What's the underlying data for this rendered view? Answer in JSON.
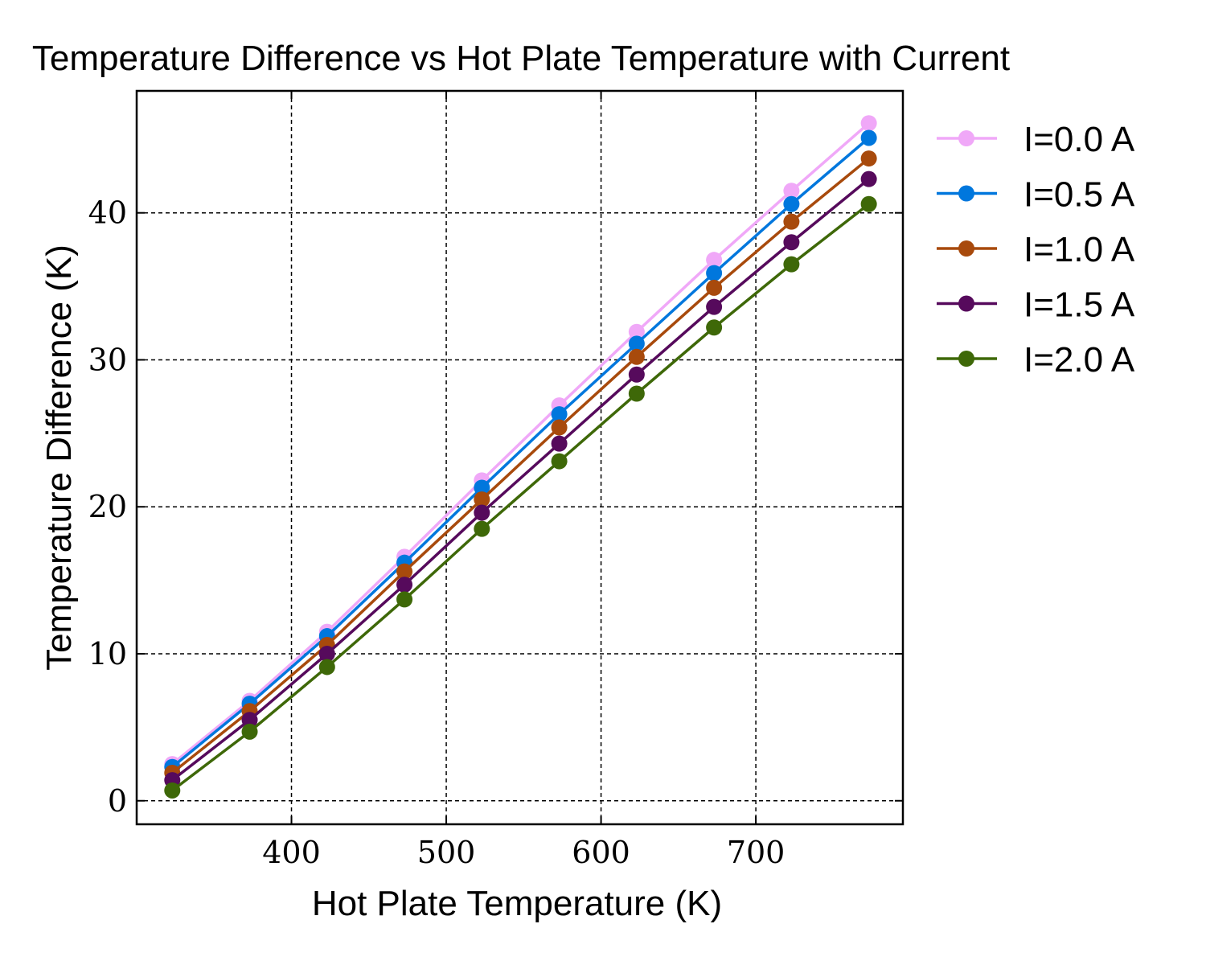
{
  "chart_data": {
    "type": "line",
    "title": "Temperature Difference vs Hot Plate Temperature with Current",
    "xlabel": "Hot Plate Temperature (K)",
    "ylabel": "Temperature Difference (K)",
    "xlim": [
      300,
      795
    ],
    "ylim": [
      -1.6,
      48.3
    ],
    "xticks": [
      400,
      500,
      600,
      700
    ],
    "yticks": [
      0,
      10,
      20,
      30,
      40
    ],
    "grid": true,
    "grid_style": "dashed",
    "legend_position": "outside-right-top",
    "x": [
      323,
      373,
      423,
      473,
      523,
      573,
      623,
      673,
      723,
      773
    ],
    "series": [
      {
        "name": "I=0.0 A",
        "color": "#f0a8f8",
        "values": [
          2.5,
          6.8,
          11.5,
          16.6,
          21.8,
          26.9,
          31.9,
          36.8,
          41.5,
          46.1
        ]
      },
      {
        "name": "I=0.5 A",
        "color": "#0077dd",
        "values": [
          2.3,
          6.6,
          11.2,
          16.2,
          21.3,
          26.3,
          31.1,
          35.9,
          40.6,
          45.1
        ]
      },
      {
        "name": "I=1.0 A",
        "color": "#a84a0c",
        "values": [
          1.9,
          6.1,
          10.6,
          15.6,
          20.5,
          25.4,
          30.2,
          34.9,
          39.4,
          43.7
        ]
      },
      {
        "name": "I=1.5 A",
        "color": "#560a5c",
        "values": [
          1.4,
          5.5,
          10.0,
          14.7,
          19.6,
          24.3,
          29.0,
          33.6,
          38.0,
          42.3
        ]
      },
      {
        "name": "I=2.0 A",
        "color": "#3e6808",
        "values": [
          0.7,
          4.7,
          9.1,
          13.7,
          18.5,
          23.1,
          27.7,
          32.2,
          36.5,
          40.6
        ]
      }
    ]
  }
}
